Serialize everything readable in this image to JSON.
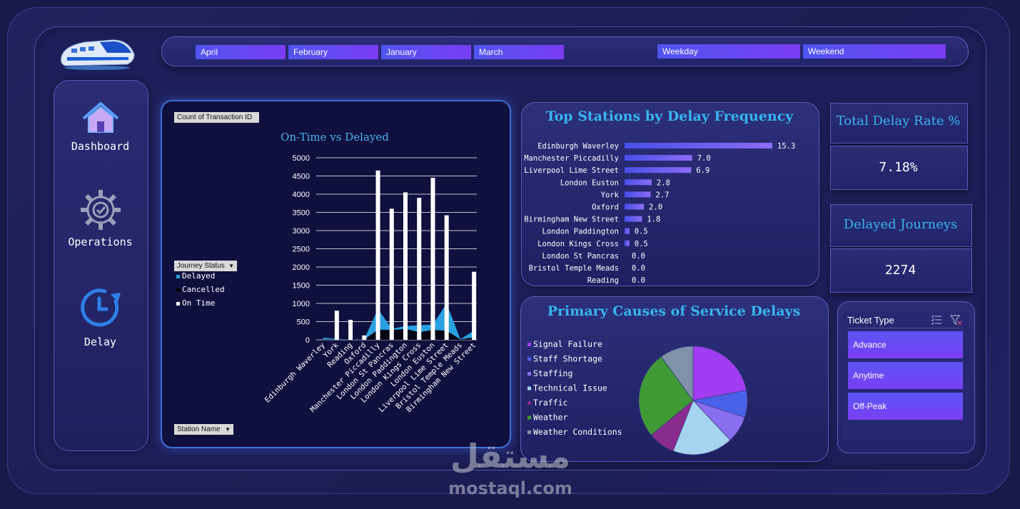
{
  "months": [
    "April",
    "February",
    "January",
    "March"
  ],
  "day_types": [
    "Weekday",
    "Weekend"
  ],
  "nav": [
    {
      "label": "Dashboard",
      "icon": "home-icon"
    },
    {
      "label": "Operations",
      "icon": "gear-icon"
    },
    {
      "label": "Delay",
      "icon": "clock-icon"
    }
  ],
  "main_chart": {
    "value_pill": "Count of Transaction ID",
    "legend_pill": "Journey Status",
    "axis_pill": "Station Name"
  },
  "stations_card": {
    "title": "Top Stations by Delay Frequency"
  },
  "causes_card": {
    "title": "Primary Causes of Service Delays"
  },
  "kpi": {
    "delay_rate_title": "Total Delay Rate %",
    "delay_rate_value": "7.18%",
    "delayed_title": "Delayed Journeys",
    "delayed_value": "2274"
  },
  "ticket": {
    "title": "Ticket Type",
    "options": [
      "Advance",
      "Anytime",
      "Off-Peak"
    ]
  },
  "watermark": {
    "arabic": "مستقل",
    "latin": "mostaql.com"
  },
  "chart_data": [
    {
      "type": "area",
      "title": "On-Time vs Delayed",
      "categories": [
        "Edinburgh Waverley",
        "York",
        "Reading",
        "Oxford",
        "Manchester Piccadilly",
        "London St Pancras",
        "London Paddington",
        "London Kings Cross",
        "London Euston",
        "Liverpool Lime Street",
        "Bristol Temple Meads",
        "Birmingham New Street"
      ],
      "series": [
        {
          "name": "Delayed",
          "color": "#2aa0e0",
          "values": [
            60,
            30,
            10,
            10,
            850,
            300,
            380,
            400,
            420,
            1000,
            20,
            250
          ]
        },
        {
          "name": "Cancelled",
          "color": "#000000",
          "values": [
            10,
            10,
            5,
            5,
            280,
            270,
            300,
            210,
            270,
            250,
            10,
            70
          ]
        },
        {
          "name": "On Time",
          "color": "#ffffff",
          "values": [
            0,
            800,
            550,
            120,
            4650,
            3600,
            4050,
            3900,
            4450,
            3420,
            0,
            1870
          ]
        }
      ],
      "ylim": [
        0,
        5000
      ],
      "yticks": [
        "0",
        "500",
        "1000",
        "1500",
        "2000",
        "2500",
        "3000",
        "3500",
        "4000",
        "4500",
        "5000"
      ],
      "grid": true,
      "legend": "left"
    },
    {
      "type": "bar",
      "title": "Top Stations by Delay Frequency",
      "categories": [
        "Edinburgh Waverley",
        "Manchester Piccadilly",
        "Liverpool Lime Street",
        "London Euston",
        "York",
        "Oxford",
        "Birmingham New Street",
        "London Paddington",
        "London Kings Cross",
        "London St Pancras",
        "Bristol Temple Meads",
        "Reading"
      ],
      "values": [
        15.3,
        7.0,
        6.9,
        2.8,
        2.7,
        2.0,
        1.8,
        0.5,
        0.5,
        0.0,
        0.0,
        0.0
      ],
      "labels": [
        "15.3",
        "7.0",
        "6.9",
        "2.8",
        "2.7",
        "2.0",
        "1.8",
        "0.5",
        "0.5",
        "0.0",
        "0.0",
        "0.0"
      ],
      "xlim": [
        0,
        15.3
      ]
    },
    {
      "type": "pie",
      "title": "Primary Causes of Service Delays",
      "categories": [
        "Signal Failure",
        "Staff Shortage",
        "Staffing",
        "Technical Issue",
        "Traffic",
        "Weather",
        "Weather Conditions"
      ],
      "values": [
        22,
        8,
        8,
        18,
        8,
        26,
        10
      ],
      "colors": [
        "#a13cf0",
        "#4a62ea",
        "#8a6ef0",
        "#a6d4f0",
        "#8a2c8e",
        "#3f9a36",
        "#7f92a8"
      ]
    }
  ]
}
